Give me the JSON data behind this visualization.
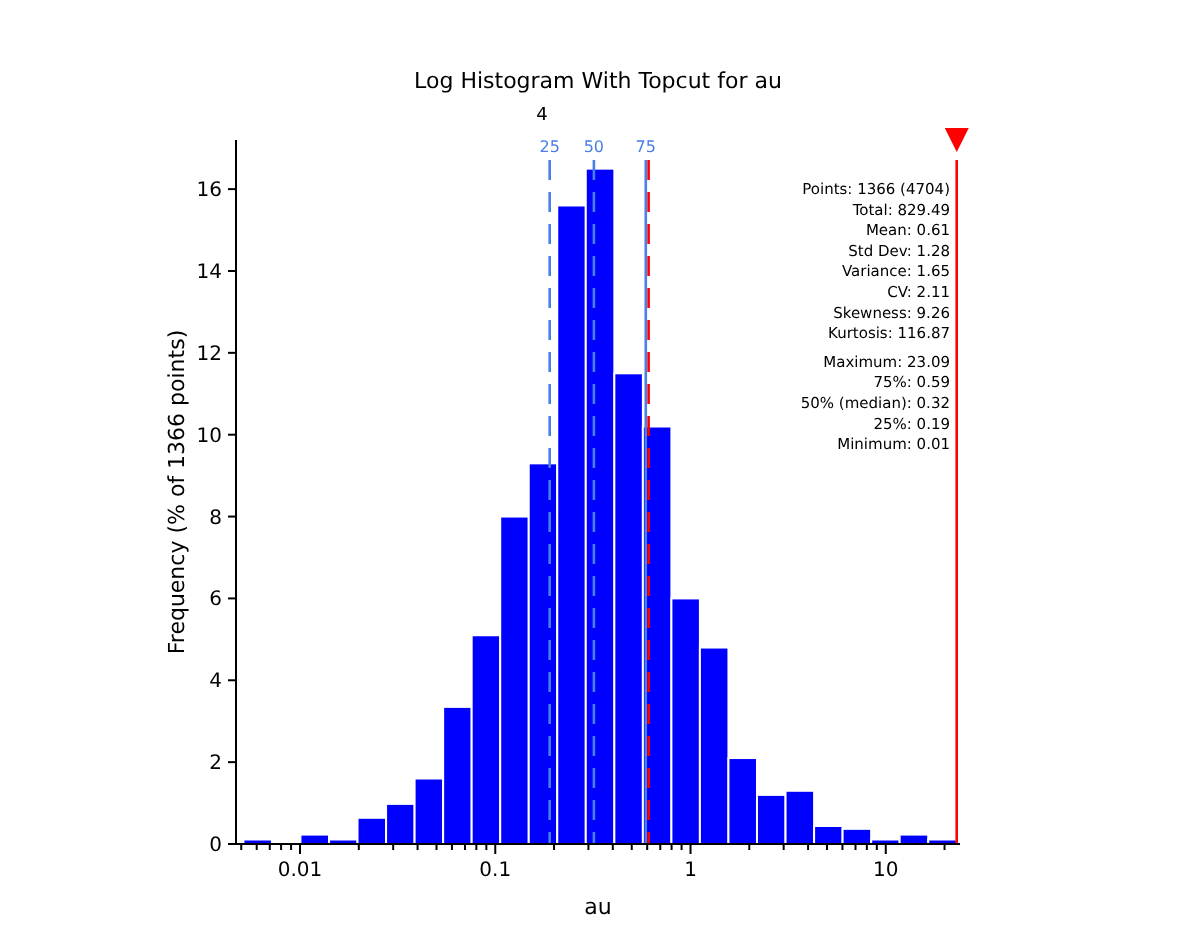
{
  "chart_data": {
    "type": "histogram",
    "title": "Log Histogram With Topcut for au",
    "xlabel": "au",
    "ylabel": "Frequency (% of 1366 points)",
    "log": "x",
    "color": "#0000ff",
    "bins": [
      0.00513,
      0.00718,
      0.01005,
      0.01408,
      0.0197,
      0.02759,
      0.03862,
      0.05408,
      0.0757,
      0.106,
      0.1484,
      0.2077,
      0.2908,
      0.4073,
      0.5702,
      0.7983,
      1.117,
      1.564,
      2.19,
      3.067,
      4.295,
      6.01,
      8.418,
      11.78,
      16.5,
      23.09
    ],
    "values": [
      0.11,
      0,
      0.23,
      0.11,
      0.64,
      0.98,
      1.6,
      3.35,
      5.1,
      8.0,
      9.3,
      15.6,
      16.5,
      11.5,
      10.2,
      6.0,
      4.8,
      2.1,
      1.2,
      1.3,
      0.44,
      0.37,
      0.11,
      0.23,
      0.11
    ],
    "xlim": [
      0.0047,
      24
    ],
    "ylim": [
      0,
      17.2
    ],
    "xticks": [
      {
        "value": 0.005,
        "label": null
      },
      {
        "value": 0.006,
        "label": null
      },
      {
        "value": 0.007,
        "label": null
      },
      {
        "value": 0.008,
        "label": null
      },
      {
        "value": 0.009,
        "label": null
      },
      0.01,
      {
        "value": 0.02,
        "label": null
      },
      {
        "value": 0.03,
        "label": null
      },
      {
        "value": 0.04,
        "label": null
      },
      {
        "value": 0.05,
        "label": null
      },
      {
        "value": 0.06,
        "label": null
      },
      {
        "value": 0.07,
        "label": null
      },
      {
        "value": 0.08,
        "label": null
      },
      {
        "value": 0.09,
        "label": null
      },
      0.1,
      {
        "value": 0.2,
        "label": null
      },
      {
        "value": 0.3,
        "label": null
      },
      {
        "value": 0.4,
        "label": null
      },
      {
        "value": 0.5,
        "label": null
      },
      {
        "value": 0.6,
        "label": null
      },
      {
        "value": 0.7,
        "label": null
      },
      {
        "value": 0.8,
        "label": null
      },
      {
        "value": 0.9,
        "label": null
      },
      1,
      {
        "value": 2,
        "label": null
      },
      {
        "value": 3,
        "label": null
      },
      {
        "value": 4,
        "label": null
      },
      {
        "value": 5,
        "label": null
      },
      {
        "value": 6,
        "label": null
      },
      {
        "value": 7,
        "label": null
      },
      {
        "value": 8,
        "label": null
      },
      {
        "value": 9,
        "label": null
      },
      10,
      {
        "value": 20,
        "label": null
      }
    ],
    "yticks": [
      0,
      2,
      4,
      6,
      8,
      10,
      12,
      14,
      16
    ],
    "grid": false,
    "ref_lines": [
      {
        "axis": "x",
        "value": 0.19,
        "color": "#4a7ee8",
        "line_style": "dashed"
      },
      {
        "axis": "x",
        "value": 0.32,
        "color": "#4a7ee8",
        "line_style": "dashed"
      },
      {
        "axis": "x",
        "value": 0.59,
        "color": "#4a7ee8",
        "line_style": "solid"
      },
      {
        "axis": "x",
        "value": 0.61,
        "color": "#ff0000",
        "line_style": "dashed"
      },
      {
        "axis": "x",
        "value": 23.09,
        "color": "#ff0000",
        "line_style": "solid"
      }
    ],
    "annotations": [
      "4",
      "25",
      "50",
      "75",
      "Points: 1366 (4704)",
      "Total: 829.49",
      "Mean: 0.61",
      "Std Dev: 1.28",
      "Variance: 1.65",
      "CV: 2.11",
      "Skewness: 9.26",
      "Kurtosis: 116.87",
      "Maximum: 23.09",
      "75%: 0.59",
      "50% (median): 0.32",
      "25%: 0.19",
      "Minimum: 0.01"
    ]
  }
}
